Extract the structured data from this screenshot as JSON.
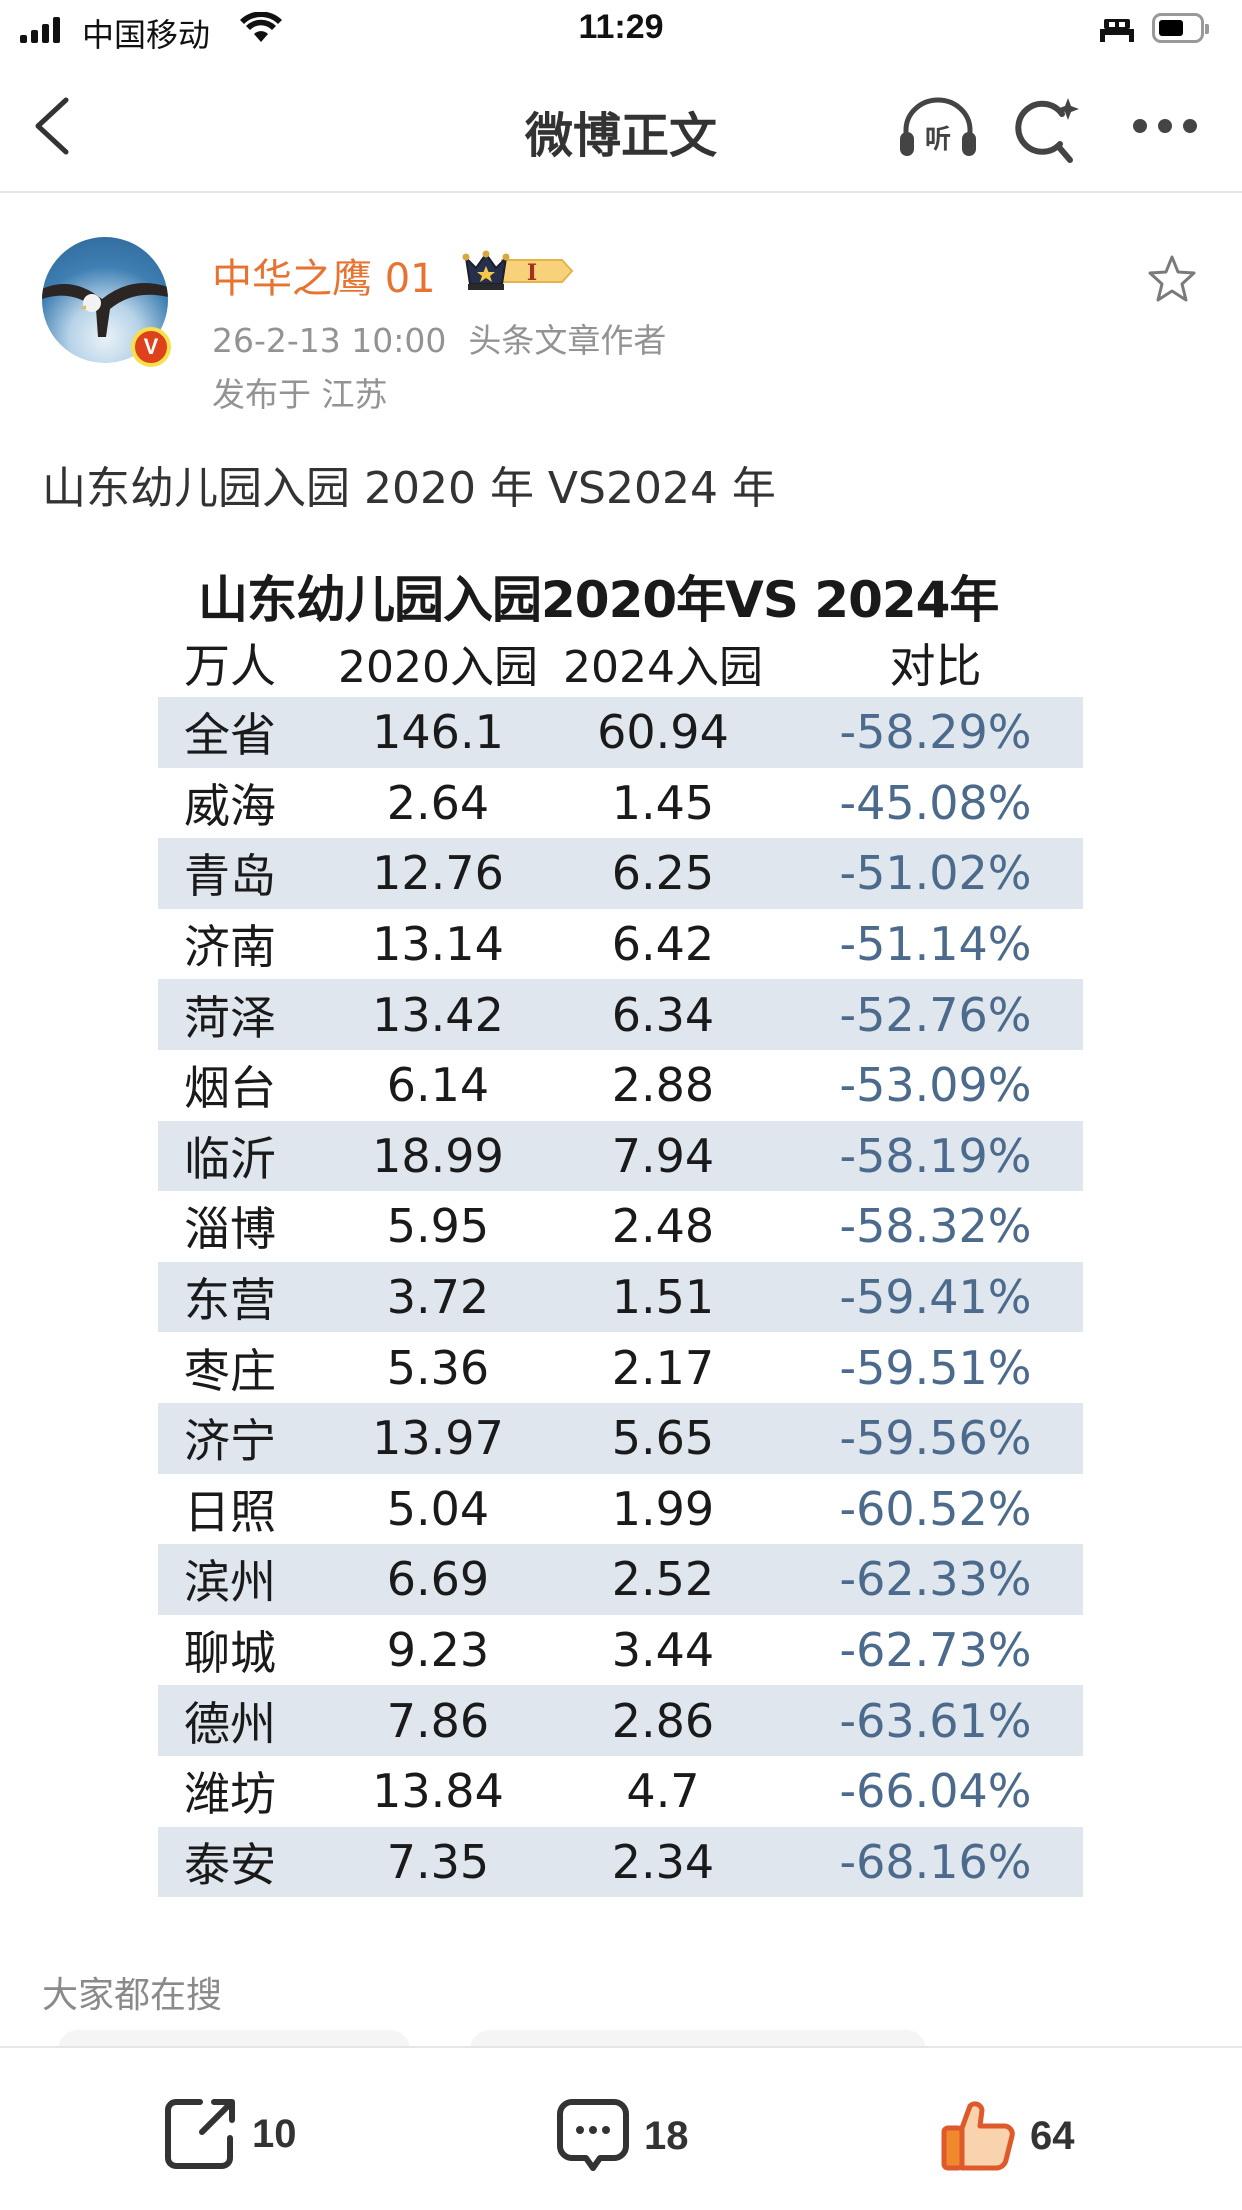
{
  "status_bar": {
    "carrier": "中国移动",
    "time": "11:29",
    "battery_percent": 50
  },
  "nav": {
    "title": "微博正文",
    "back_icon": "chevron-left-icon",
    "listen_icon_label": "听",
    "search_icon": "search-sparkle-icon",
    "more_icon": "more-dots-icon"
  },
  "author": {
    "name": "中华之鹰 01",
    "verified_badge": "V",
    "level_badge": "I",
    "time": "26-2-13 10:00",
    "role": "头条文章作者",
    "location": "发布于 江苏"
  },
  "post": {
    "text": "山东幼儿园入园 2020 年 VS2024 年",
    "image_table": {
      "title": "山东幼儿园入园2020年VS 2024年",
      "headers": [
        "万人",
        "2020入园",
        "2024入园",
        "对比"
      ],
      "rows": [
        [
          "全省",
          "146.1",
          "60.94",
          "-58.29%"
        ],
        [
          "威海",
          "2.64",
          "1.45",
          "-45.08%"
        ],
        [
          "青岛",
          "12.76",
          "6.25",
          "-51.02%"
        ],
        [
          "济南",
          "13.14",
          "6.42",
          "-51.14%"
        ],
        [
          "菏泽",
          "13.42",
          "6.34",
          "-52.76%"
        ],
        [
          "烟台",
          "6.14",
          "2.88",
          "-53.09%"
        ],
        [
          "临沂",
          "18.99",
          "7.94",
          "-58.19%"
        ],
        [
          "淄博",
          "5.95",
          "2.48",
          "-58.32%"
        ],
        [
          "东营",
          "3.72",
          "1.51",
          "-59.41%"
        ],
        [
          "枣庄",
          "5.36",
          "2.17",
          "-59.51%"
        ],
        [
          "济宁",
          "13.97",
          "5.65",
          "-59.56%"
        ],
        [
          "日照",
          "5.04",
          "1.99",
          "-60.52%"
        ],
        [
          "滨州",
          "6.69",
          "2.52",
          "-62.33%"
        ],
        [
          "聊城",
          "9.23",
          "3.44",
          "-62.73%"
        ],
        [
          "德州",
          "7.86",
          "2.86",
          "-63.61%"
        ],
        [
          "潍坊",
          "13.84",
          "4.7",
          "-66.04%"
        ],
        [
          "泰安",
          "7.35",
          "2.34",
          "-68.16%"
        ]
      ]
    }
  },
  "trending": {
    "label": "大家都在搜"
  },
  "actions": {
    "share_count": "10",
    "comment_count": "18",
    "like_count": "64"
  },
  "colors": {
    "username": "#e8722f",
    "percent_text": "#4b6a8c",
    "row_band": "#dfe6ee",
    "like_fill": "#f8d3ad",
    "like_stroke": "#de5a2b"
  }
}
